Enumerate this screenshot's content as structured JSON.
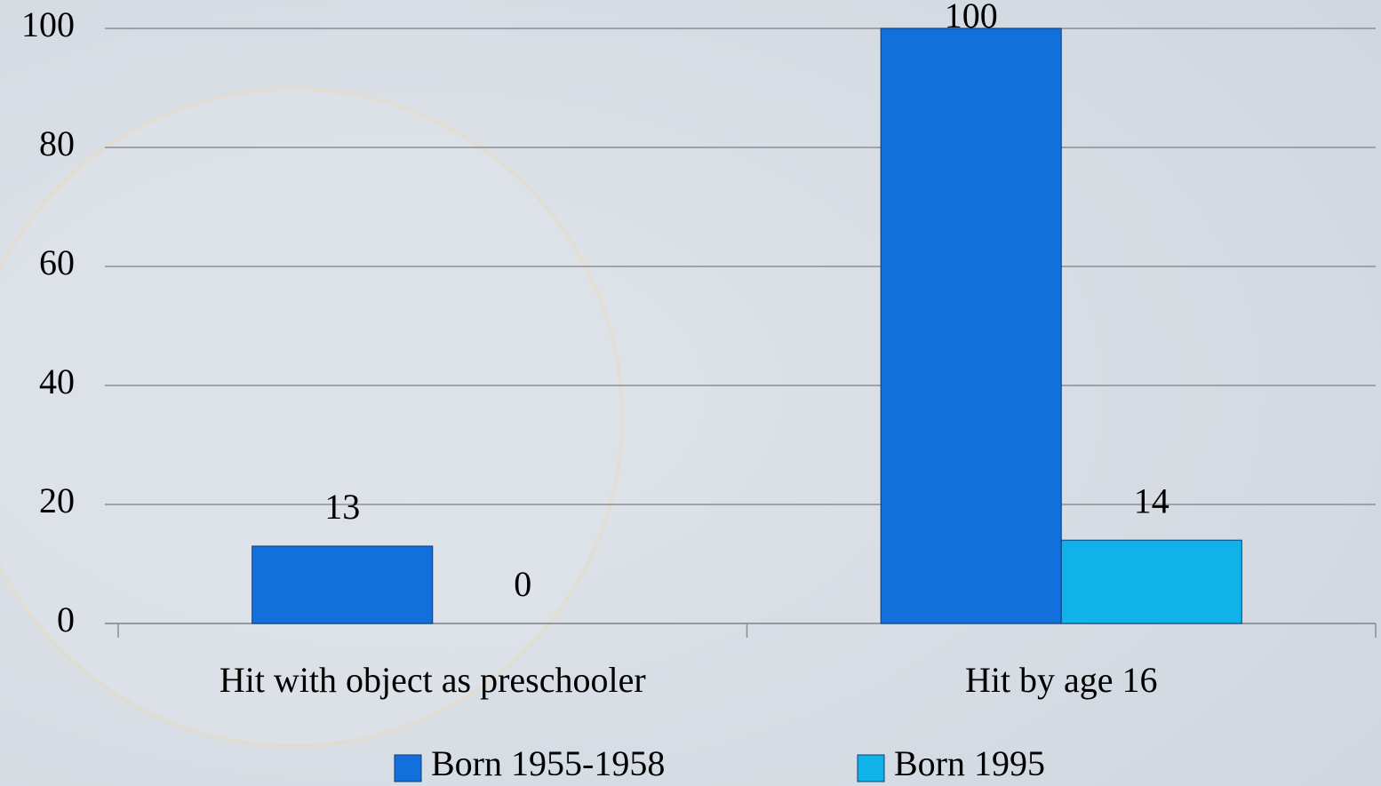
{
  "chart_data": {
    "type": "bar",
    "categories": [
      "Hit with object as preschooler",
      "Hit by age 16"
    ],
    "series": [
      {
        "name": "Born 1955-1958",
        "color": "#1170dc",
        "values": [
          13,
          100
        ]
      },
      {
        "name": "Born 1995",
        "color": "#10b2ea",
        "values": [
          0,
          14
        ]
      }
    ],
    "ylim": [
      0,
      100
    ],
    "yticks": [
      0,
      20,
      40,
      60,
      80,
      100
    ],
    "grid": true,
    "legend": "bottom"
  }
}
